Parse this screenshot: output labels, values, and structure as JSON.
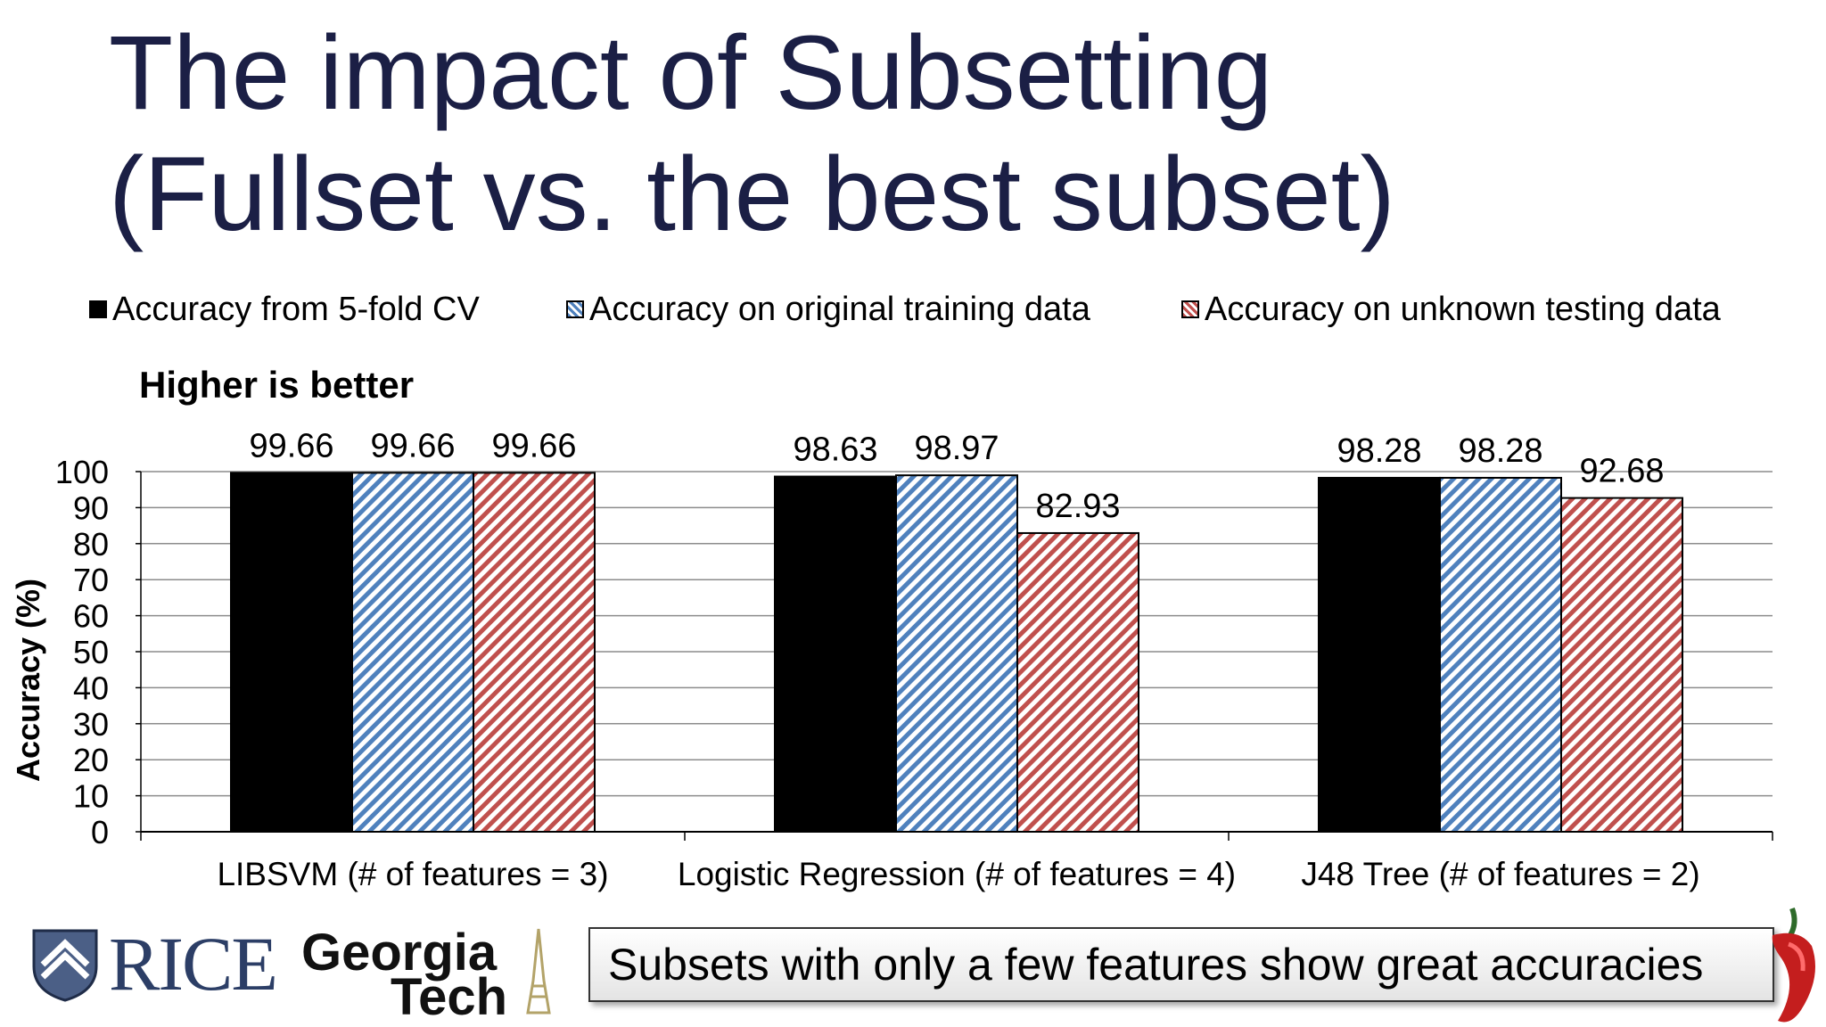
{
  "title": {
    "line1": "The impact of Subsetting",
    "line2": "(Fullset vs. the best subset)"
  },
  "chart_data": {
    "type": "bar",
    "title": "Higher is better",
    "xlabel": "",
    "ylabel": "Accuracy (%)",
    "ylim": [
      0,
      100
    ],
    "yticks": [
      0,
      10,
      20,
      30,
      40,
      50,
      60,
      70,
      80,
      90,
      100
    ],
    "categories": [
      "LIBSVM (# of features = 3)",
      "Logistic Regression (# of features = 4)",
      "J48 Tree (# of features = 2)"
    ],
    "series": [
      {
        "name": "Accuracy from 5-fold CV",
        "values": [
          99.66,
          98.63,
          98.28
        ],
        "labels": [
          "99.66",
          "98.63",
          "98.28"
        ],
        "color": "#000000",
        "pattern": "solid"
      },
      {
        "name": "Accuracy on original training data",
        "values": [
          99.66,
          98.97,
          98.28
        ],
        "labels": [
          "99.66",
          "98.97",
          "98.28"
        ],
        "color": "#4f81bd",
        "pattern": "diagonal-stripes"
      },
      {
        "name": "Accuracy on unknown testing data",
        "values": [
          99.66,
          82.93,
          92.68
        ],
        "labels": [
          "99.66",
          "82.93",
          "92.68"
        ],
        "color": "#c0504d",
        "pattern": "diagonal-stripes"
      }
    ],
    "grid": true,
    "legend": "top"
  },
  "callout": {
    "text": "Subsets with only a few features show great accuracies"
  },
  "logos": {
    "rice": {
      "text": "RICE",
      "color": "#2c3e66"
    },
    "georgia_tech": {
      "line1": "Georgia",
      "line2": "Tech",
      "color": "#b3a369"
    }
  },
  "icons": [
    "shield-icon",
    "tower-icon",
    "pepper-icon"
  ]
}
